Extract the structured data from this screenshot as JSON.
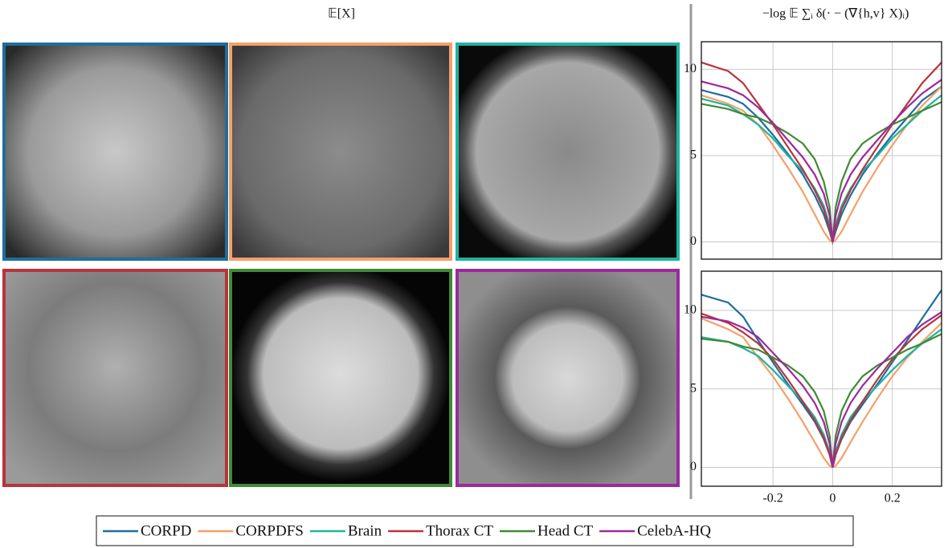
{
  "figure_title": "𝔼[X]",
  "chart_data": [
    {
      "type": "line",
      "title": "−log 𝔼 ∑ᵢ δ(· − (∇{h,v} X)ᵢ)",
      "x": [
        -0.44,
        -0.35,
        -0.3,
        -0.25,
        -0.2,
        -0.15,
        -0.1,
        -0.06,
        -0.03,
        -0.01,
        0,
        0.01,
        0.03,
        0.06,
        0.1,
        0.15,
        0.2,
        0.25,
        0.3,
        0.365
      ],
      "xlim": [
        -0.44,
        0.365
      ],
      "xticks": [
        -0.2,
        0,
        0.2
      ],
      "ylim": [
        -1,
        11.6
      ],
      "yticks": [
        0,
        5,
        10
      ],
      "grid": true,
      "series": [
        {
          "name": "CORPD",
          "color": "#1f6e9c",
          "values": [
            8.8,
            8.4,
            8.0,
            7.2,
            6.2,
            5.1,
            3.9,
            2.7,
            1.6,
            0.6,
            0,
            0.6,
            1.6,
            2.7,
            3.9,
            5.1,
            6.2,
            7.2,
            8.2,
            9.0
          ]
        },
        {
          "name": "CORPDFS",
          "color": "#f4a06a",
          "values": [
            8.5,
            8.0,
            7.6,
            6.8,
            5.6,
            4.3,
            2.9,
            1.6,
            0.6,
            0.1,
            0,
            0.1,
            0.6,
            1.6,
            2.9,
            4.3,
            5.6,
            6.8,
            7.9,
            9.0
          ]
        },
        {
          "name": "Brain",
          "color": "#20b2a0",
          "values": [
            8.3,
            7.9,
            7.4,
            6.8,
            6.0,
            5.0,
            4.1,
            3.1,
            2.1,
            1.0,
            0,
            1.0,
            2.1,
            3.1,
            4.1,
            5.0,
            6.0,
            6.8,
            7.6,
            8.5
          ]
        },
        {
          "name": "Thorax CT",
          "color": "#b8343c",
          "values": [
            10.4,
            9.9,
            9.2,
            8.0,
            6.8,
            5.5,
            4.2,
            3.0,
            1.9,
            0.8,
            0,
            0.8,
            1.9,
            3.0,
            4.2,
            5.5,
            6.8,
            8.0,
            9.2,
            10.4
          ]
        },
        {
          "name": "Head CT",
          "color": "#3f8a34",
          "values": [
            8.0,
            7.7,
            7.4,
            7.2,
            6.8,
            6.3,
            5.7,
            4.8,
            3.5,
            2.0,
            0,
            2.0,
            3.5,
            4.8,
            5.7,
            6.3,
            6.8,
            7.2,
            7.6,
            8.1
          ]
        },
        {
          "name": "CelebA-HQ",
          "color": "#9b2a9b",
          "values": [
            9.3,
            8.9,
            8.5,
            7.8,
            6.9,
            5.9,
            4.9,
            3.9,
            2.8,
            1.5,
            0,
            1.5,
            2.8,
            3.9,
            4.9,
            5.9,
            6.9,
            7.8,
            8.6,
            9.4
          ]
        }
      ]
    },
    {
      "type": "line",
      "x": [
        -0.44,
        -0.35,
        -0.3,
        -0.25,
        -0.2,
        -0.15,
        -0.1,
        -0.06,
        -0.03,
        -0.01,
        0,
        0.01,
        0.03,
        0.06,
        0.1,
        0.15,
        0.2,
        0.25,
        0.3,
        0.365
      ],
      "xlim": [
        -0.44,
        0.365
      ],
      "xticks": [
        -0.2,
        0,
        0.2
      ],
      "ylim": [
        -1.2,
        12.5
      ],
      "yticks": [
        0,
        5,
        10
      ],
      "grid": true,
      "series": [
        {
          "name": "CORPD",
          "color": "#1f6e9c",
          "values": [
            11.0,
            10.5,
            9.6,
            8.1,
            6.7,
            5.3,
            4.0,
            2.9,
            1.8,
            0.8,
            0,
            0.8,
            1.8,
            2.9,
            4.0,
            5.3,
            6.7,
            8.1,
            9.5,
            11.3
          ]
        },
        {
          "name": "CORPDFS",
          "color": "#f4a06a",
          "values": [
            9.5,
            8.8,
            8.3,
            7.0,
            5.8,
            4.4,
            2.9,
            1.6,
            0.6,
            0.1,
            0,
            0.1,
            0.6,
            1.6,
            2.9,
            4.4,
            5.8,
            7.0,
            8.0,
            9.2
          ]
        },
        {
          "name": "Brain",
          "color": "#20b2a0",
          "values": [
            8.3,
            8.0,
            7.6,
            7.1,
            6.2,
            5.2,
            4.2,
            3.2,
            2.1,
            1.0,
            0,
            1.0,
            2.1,
            3.2,
            4.2,
            5.2,
            6.2,
            7.1,
            7.9,
            8.8
          ]
        },
        {
          "name": "Thorax CT",
          "color": "#b8343c",
          "values": [
            9.8,
            9.2,
            8.6,
            7.9,
            6.9,
            5.6,
            4.2,
            3.0,
            1.9,
            0.8,
            0,
            0.8,
            1.9,
            3.0,
            4.2,
            5.6,
            6.9,
            7.9,
            8.8,
            9.7
          ]
        },
        {
          "name": "Head CT",
          "color": "#3f8a34",
          "values": [
            8.2,
            8.0,
            7.7,
            7.5,
            7.0,
            6.5,
            5.8,
            4.8,
            3.6,
            2.0,
            0,
            2.0,
            3.6,
            4.8,
            5.8,
            6.5,
            7.0,
            7.5,
            7.9,
            8.5
          ]
        },
        {
          "name": "CelebA-HQ",
          "color": "#9b2a9b",
          "values": [
            9.6,
            9.3,
            8.9,
            8.3,
            7.3,
            6.3,
            5.2,
            4.1,
            2.9,
            1.5,
            0,
            1.5,
            2.9,
            4.1,
            5.2,
            6.3,
            7.3,
            8.3,
            9.1,
            9.9
          ]
        }
      ]
    }
  ]
}
